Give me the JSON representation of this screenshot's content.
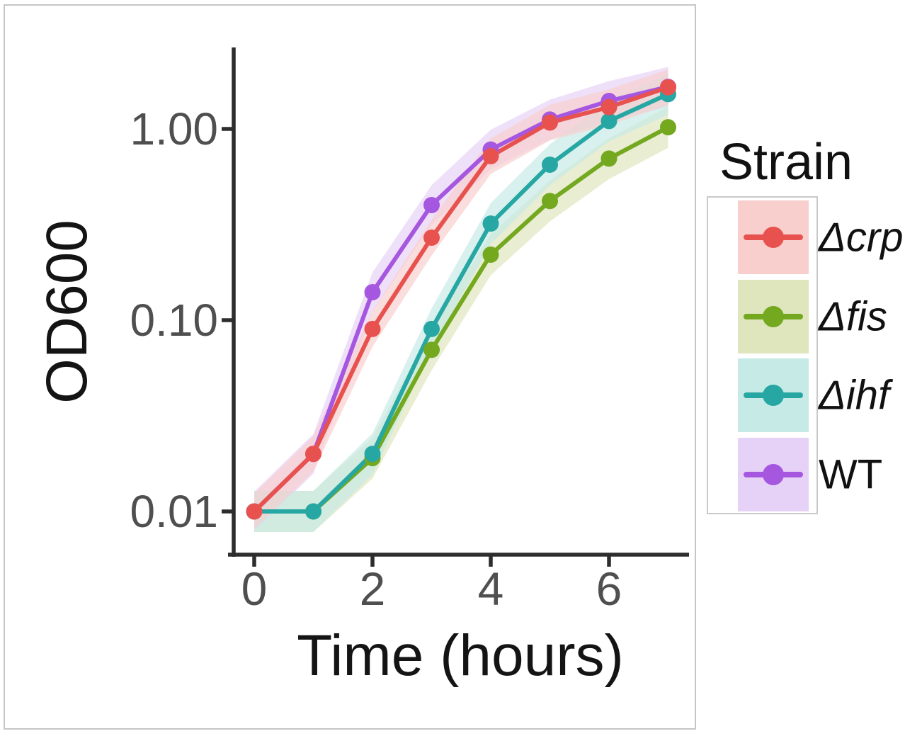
{
  "figure": {
    "background": "#ffffff",
    "panel_border_color": "#c6c6c6"
  },
  "chart_data": {
    "type": "line",
    "title": "",
    "xlabel": "Time (hours)",
    "ylabel": "OD600",
    "yscale": "log10",
    "grid": false,
    "xlim": [
      -0.35,
      7.35
    ],
    "ylim": [
      0.0065,
      2.4
    ],
    "x": [
      0,
      1,
      2,
      3,
      4,
      5,
      6,
      7
    ],
    "xticks": [
      0,
      2,
      4,
      6
    ],
    "xtick_labels": [
      "0",
      "2",
      "4",
      "6"
    ],
    "yticks": [
      1.0,
      0.1,
      0.01
    ],
    "ytick_labels": [
      "1.00",
      "0.10",
      "0.01"
    ],
    "axis_color": "#2d2d2d",
    "tick_label_color": "#4f4f4f",
    "legend_title": "Strain",
    "legend_position": "right",
    "series": [
      {
        "label": "Δcrp",
        "italic": true,
        "z": 4,
        "color": "#e8524e",
        "band_color": "#f8cfcd",
        "band_factor": 1.24,
        "values": [
          0.01,
          0.02,
          0.09,
          0.27,
          0.72,
          1.08,
          1.3,
          1.65
        ]
      },
      {
        "label": "Δfis",
        "italic": true,
        "z": 1,
        "color": "#73a81f",
        "band_color": "#dfe5bc",
        "band_factor": 1.28,
        "values": [
          0.01,
          0.01,
          0.019,
          0.07,
          0.22,
          0.42,
          0.7,
          1.02
        ]
      },
      {
        "label": "Δihf",
        "italic": true,
        "z": 3,
        "color": "#27a7a3",
        "band_color": "#c6ebe6",
        "band_factor": 1.28,
        "values": [
          0.01,
          0.01,
          0.02,
          0.09,
          0.32,
          0.65,
          1.1,
          1.52
        ]
      },
      {
        "label": "WT",
        "italic": false,
        "z": 2,
        "color": "#a657e0",
        "band_color": "#e7d2f7",
        "band_factor": 1.27,
        "values": [
          0.01,
          0.02,
          0.14,
          0.4,
          0.78,
          1.12,
          1.4,
          1.66
        ]
      }
    ]
  }
}
